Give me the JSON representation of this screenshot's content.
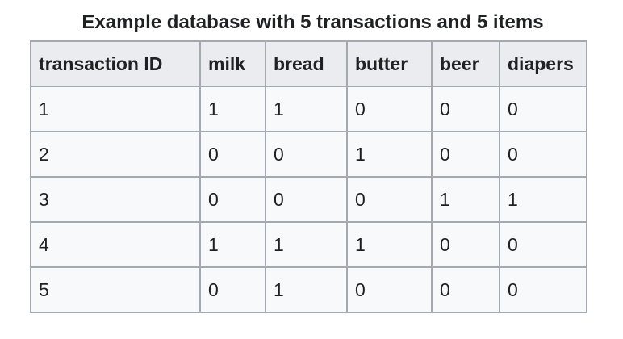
{
  "caption": "Example database with 5 transactions and 5 items",
  "table": {
    "headers": [
      "transaction ID",
      "milk",
      "bread",
      "butter",
      "beer",
      "diapers"
    ],
    "rows": [
      [
        "1",
        "1",
        "1",
        "0",
        "0",
        "0"
      ],
      [
        "2",
        "0",
        "0",
        "1",
        "0",
        "0"
      ],
      [
        "3",
        "0",
        "0",
        "0",
        "1",
        "1"
      ],
      [
        "4",
        "1",
        "1",
        "1",
        "0",
        "0"
      ],
      [
        "5",
        "0",
        "1",
        "0",
        "0",
        "0"
      ]
    ]
  },
  "colors": {
    "header_bg": "#eaecf0",
    "cell_bg": "#f8f9fa",
    "border": "#a2a9b1",
    "text": "#202122"
  }
}
